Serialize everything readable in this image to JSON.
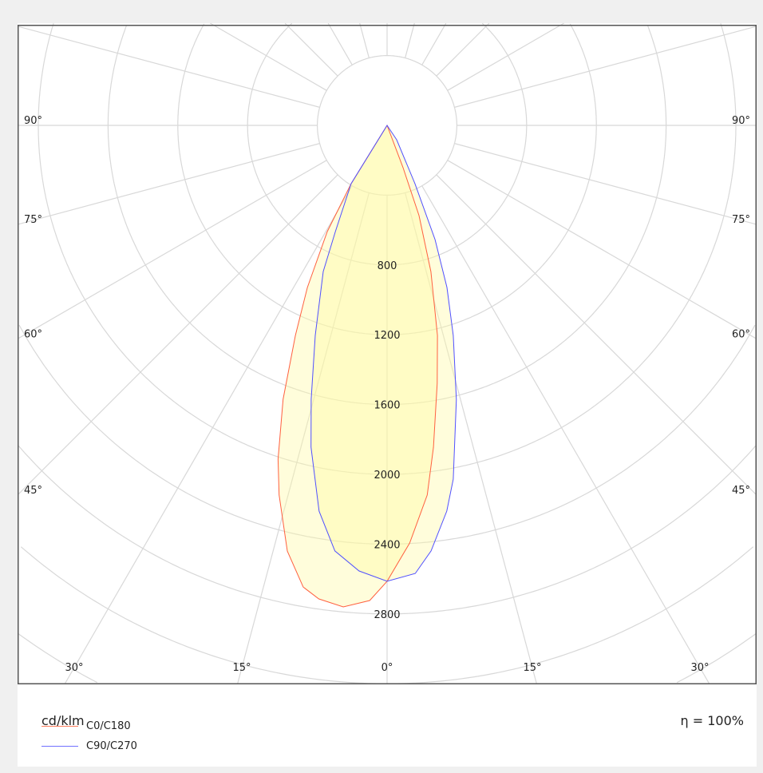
{
  "chart_data": {
    "type": "polar",
    "unit_label": "cd/klm",
    "efficiency_label": "η = 100%",
    "radial_ticks": [
      800,
      1200,
      1600,
      2000,
      2400,
      2800
    ],
    "radial_grid_step": 400,
    "angle_ticks": {
      "sides": [
        "90°",
        "75°",
        "60°",
        "45°"
      ],
      "bottom": [
        "30°",
        "15°",
        "0°",
        "15°",
        "30°"
      ]
    },
    "angular_grid_step_deg": 15,
    "grid": true,
    "legend_position": "bottom-left",
    "series": [
      {
        "name": "C0/C180",
        "color": "#ff6040",
        "points": [
          [
            -33,
            0
          ],
          [
            -31.7,
            393
          ],
          [
            -29.4,
            699
          ],
          [
            -26.2,
            1036
          ],
          [
            -23.6,
            1314
          ],
          [
            -20.8,
            1679
          ],
          [
            -18.1,
            2013
          ],
          [
            -16.3,
            2207
          ],
          [
            -13.2,
            2506
          ],
          [
            -10.3,
            2689
          ],
          [
            -8.2,
            2742
          ],
          [
            -5.2,
            2771
          ],
          [
            -2.1,
            2725
          ],
          [
            0,
            2613
          ],
          [
            3.1,
            2397
          ],
          [
            6.2,
            2131
          ],
          [
            8.2,
            1864
          ],
          [
            11.0,
            1506
          ],
          [
            13.5,
            1238
          ],
          [
            16.7,
            875
          ],
          [
            19.5,
            548
          ],
          [
            20.7,
            259
          ],
          [
            21,
            0
          ]
        ]
      },
      {
        "name": "C90/C270",
        "color": "#5050ff",
        "points": [
          [
            -33,
            0
          ],
          [
            -31.7,
            393
          ],
          [
            -26.0,
            677
          ],
          [
            -23.6,
            914
          ],
          [
            -18.9,
            1272
          ],
          [
            -15.5,
            1629
          ],
          [
            -13.3,
            1895
          ],
          [
            -10.0,
            2245
          ],
          [
            -7.0,
            2457
          ],
          [
            -3.6,
            2559
          ],
          [
            0,
            2613
          ],
          [
            3.6,
            2573
          ],
          [
            5.9,
            2452
          ],
          [
            8.8,
            2237
          ],
          [
            10.6,
            2063
          ],
          [
            14.2,
            1620
          ],
          [
            17.5,
            1262
          ],
          [
            20.3,
            990
          ],
          [
            22.8,
            710
          ],
          [
            25.6,
            370
          ],
          [
            33.7,
            99
          ],
          [
            34,
            0
          ]
        ]
      }
    ]
  }
}
